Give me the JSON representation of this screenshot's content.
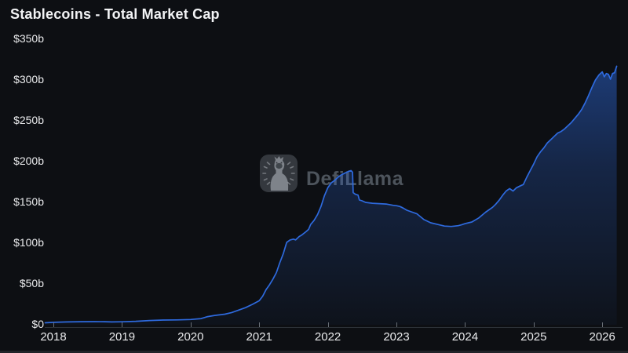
{
  "header": {
    "title": "Stablecoins - Total Market Cap"
  },
  "watermark": {
    "brand": "DefiLlama",
    "logo_icon": "defillama-llama-logo"
  },
  "colors": {
    "background": "#0d0f13",
    "line": "#2e6ade",
    "area_fill": "#2e6ade",
    "axis_text": "#e9eaec",
    "title_text": "#f2f3f5",
    "watermark_text": "#4d545c"
  },
  "chart_data": {
    "type": "area",
    "title": "Stablecoins - Total Market Cap",
    "grid": false,
    "legend": false,
    "xlabel": "",
    "ylabel": "",
    "x_range": [
      2017.88,
      2026.22
    ],
    "y_range": [
      0,
      350
    ],
    "x_axis": {
      "ticks": [
        {
          "label": "2018",
          "value": 2018
        },
        {
          "label": "2019",
          "value": 2019
        },
        {
          "label": "2020",
          "value": 2020
        },
        {
          "label": "2021",
          "value": 2021
        },
        {
          "label": "2022",
          "value": 2022
        },
        {
          "label": "2023",
          "value": 2023
        },
        {
          "label": "2024",
          "value": 2024
        },
        {
          "label": "2025",
          "value": 2025
        },
        {
          "label": "2026",
          "value": 2026
        }
      ]
    },
    "y_axis": {
      "ticks": [
        {
          "label": "$0",
          "value": 0
        },
        {
          "label": "$50b",
          "value": 50
        },
        {
          "label": "$100b",
          "value": 100
        },
        {
          "label": "$150b",
          "value": 150
        },
        {
          "label": "$200b",
          "value": 200
        },
        {
          "label": "$250b",
          "value": 250
        },
        {
          "label": "$300b",
          "value": 300
        },
        {
          "label": "$350b",
          "value": 350
        }
      ]
    },
    "series": [
      {
        "name": "Total Stablecoins Market Cap ($b)",
        "points": [
          [
            2017.88,
            1.4
          ],
          [
            2018.0,
            2.0
          ],
          [
            2018.2,
            2.5
          ],
          [
            2018.4,
            2.8
          ],
          [
            2018.6,
            2.9
          ],
          [
            2018.75,
            2.8
          ],
          [
            2018.85,
            2.5
          ],
          [
            2019.0,
            2.7
          ],
          [
            2019.2,
            3.3
          ],
          [
            2019.4,
            4.2
          ],
          [
            2019.6,
            4.8
          ],
          [
            2019.8,
            5.0
          ],
          [
            2020.0,
            5.5
          ],
          [
            2020.15,
            6.5
          ],
          [
            2020.25,
            9.0
          ],
          [
            2020.35,
            10.5
          ],
          [
            2020.5,
            12.0
          ],
          [
            2020.6,
            14.0
          ],
          [
            2020.7,
            17.0
          ],
          [
            2020.8,
            20.0
          ],
          [
            2020.9,
            24.0
          ],
          [
            2021.0,
            28.5
          ],
          [
            2021.05,
            34
          ],
          [
            2021.1,
            42
          ],
          [
            2021.15,
            48
          ],
          [
            2021.2,
            55
          ],
          [
            2021.25,
            63
          ],
          [
            2021.3,
            75
          ],
          [
            2021.35,
            86
          ],
          [
            2021.4,
            100
          ],
          [
            2021.45,
            103
          ],
          [
            2021.5,
            104
          ],
          [
            2021.53,
            103
          ],
          [
            2021.58,
            107
          ],
          [
            2021.62,
            109
          ],
          [
            2021.68,
            113
          ],
          [
            2021.72,
            116
          ],
          [
            2021.75,
            122
          ],
          [
            2021.8,
            127
          ],
          [
            2021.85,
            134
          ],
          [
            2021.9,
            144
          ],
          [
            2021.95,
            157
          ],
          [
            2022.0,
            167
          ],
          [
            2022.05,
            173
          ],
          [
            2022.1,
            176
          ],
          [
            2022.15,
            180
          ],
          [
            2022.2,
            183
          ],
          [
            2022.25,
            185
          ],
          [
            2022.3,
            187
          ],
          [
            2022.34,
            188
          ],
          [
            2022.36,
            186
          ],
          [
            2022.37,
            161
          ],
          [
            2022.4,
            159
          ],
          [
            2022.44,
            158
          ],
          [
            2022.46,
            152
          ],
          [
            2022.5,
            151
          ],
          [
            2022.55,
            149
          ],
          [
            2022.65,
            148
          ],
          [
            2022.75,
            147.5
          ],
          [
            2022.85,
            147
          ],
          [
            2022.95,
            145.5
          ],
          [
            2023.0,
            145
          ],
          [
            2023.05,
            144
          ],
          [
            2023.1,
            142
          ],
          [
            2023.15,
            139.5
          ],
          [
            2023.2,
            138
          ],
          [
            2023.3,
            135
          ],
          [
            2023.4,
            128
          ],
          [
            2023.5,
            124
          ],
          [
            2023.6,
            122
          ],
          [
            2023.7,
            120
          ],
          [
            2023.8,
            119.5
          ],
          [
            2023.9,
            120.5
          ],
          [
            2023.95,
            121.5
          ],
          [
            2024.0,
            123
          ],
          [
            2024.1,
            125
          ],
          [
            2024.2,
            130
          ],
          [
            2024.3,
            137
          ],
          [
            2024.4,
            143
          ],
          [
            2024.45,
            147
          ],
          [
            2024.5,
            152
          ],
          [
            2024.55,
            158
          ],
          [
            2024.6,
            163
          ],
          [
            2024.65,
            166
          ],
          [
            2024.7,
            163
          ],
          [
            2024.75,
            167
          ],
          [
            2024.8,
            169
          ],
          [
            2024.85,
            171
          ],
          [
            2024.9,
            180
          ],
          [
            2024.95,
            188
          ],
          [
            2025.0,
            196
          ],
          [
            2025.05,
            205
          ],
          [
            2025.1,
            211
          ],
          [
            2025.15,
            216
          ],
          [
            2025.2,
            222
          ],
          [
            2025.25,
            226
          ],
          [
            2025.3,
            230
          ],
          [
            2025.35,
            234
          ],
          [
            2025.4,
            236
          ],
          [
            2025.45,
            239
          ],
          [
            2025.5,
            243
          ],
          [
            2025.55,
            247
          ],
          [
            2025.6,
            252
          ],
          [
            2025.65,
            257
          ],
          [
            2025.7,
            263
          ],
          [
            2025.75,
            271
          ],
          [
            2025.8,
            280
          ],
          [
            2025.85,
            290
          ],
          [
            2025.9,
            299
          ],
          [
            2025.95,
            305
          ],
          [
            2026.0,
            309
          ],
          [
            2026.03,
            303
          ],
          [
            2026.06,
            307
          ],
          [
            2026.09,
            306
          ],
          [
            2026.12,
            300
          ],
          [
            2026.15,
            307
          ],
          [
            2026.18,
            308
          ],
          [
            2026.21,
            316
          ]
        ]
      }
    ]
  }
}
